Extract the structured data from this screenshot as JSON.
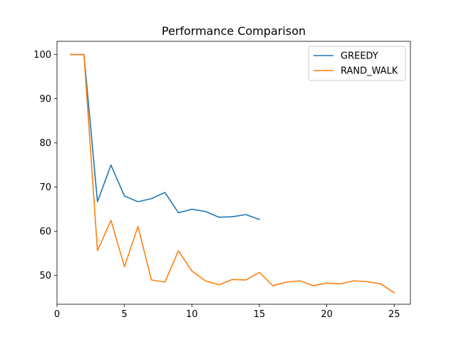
{
  "chart_data": {
    "type": "line",
    "title": "Performance Comparison",
    "xlabel": "",
    "ylabel": "",
    "xlim": [
      0,
      26.2
    ],
    "ylim": [
      43.5,
      103
    ],
    "xticks": [
      0,
      5,
      10,
      15,
      20,
      25
    ],
    "yticks": [
      50,
      60,
      70,
      80,
      90,
      100
    ],
    "grid": false,
    "legend_position": "top-right",
    "series": [
      {
        "name": "GREEDY",
        "color": "#1f77b4",
        "x": [
          1,
          2,
          3,
          4,
          5,
          6,
          7,
          8,
          9,
          10,
          11,
          12,
          13,
          14,
          15
        ],
        "y": [
          100,
          100,
          66.7,
          75,
          68,
          66.7,
          67.4,
          68.8,
          64.2,
          65,
          64.5,
          63.2,
          63.3,
          63.8,
          62.7
        ]
      },
      {
        "name": "RAND_WALK",
        "color": "#ff7f0e",
        "x": [
          1,
          2,
          3,
          4,
          5,
          6,
          7,
          8,
          9,
          10,
          11,
          12,
          13,
          14,
          15,
          16,
          17,
          18,
          19,
          20,
          21,
          22,
          23,
          24,
          25
        ],
        "y": [
          100,
          100,
          55.6,
          62.5,
          52,
          61.1,
          49,
          48.5,
          55.6,
          51,
          48.8,
          47.9,
          49.1,
          49,
          50.7,
          47.7,
          48.5,
          48.8,
          47.7,
          48.3,
          48.1,
          48.8,
          48.6,
          48.1,
          46.1
        ]
      }
    ]
  }
}
